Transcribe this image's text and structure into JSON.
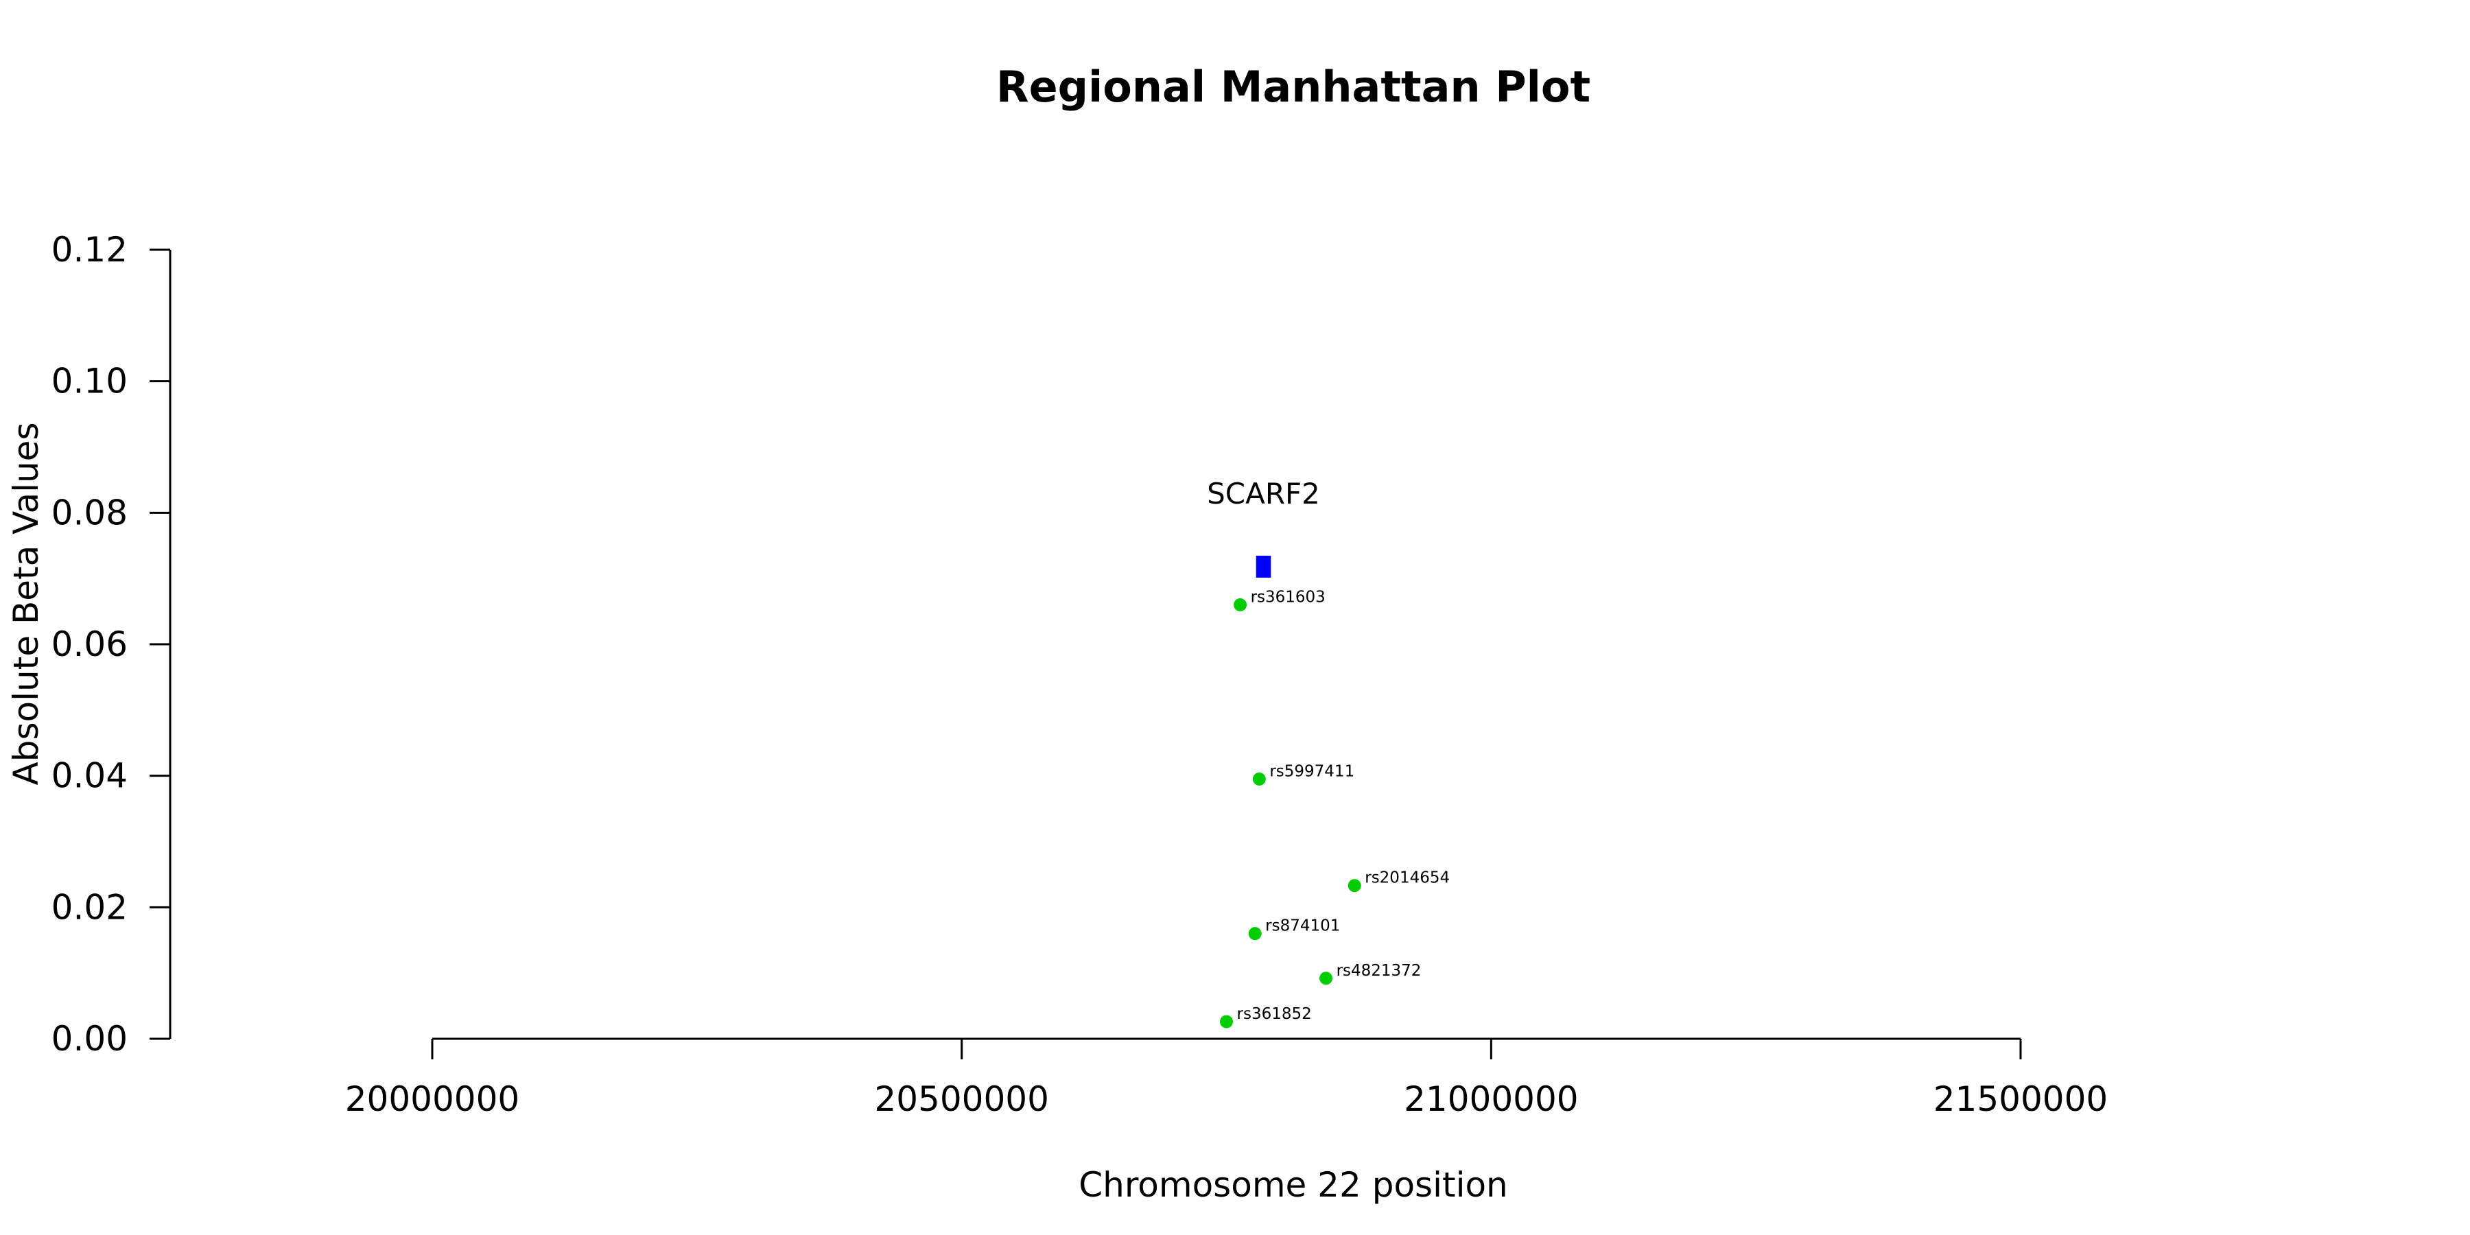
{
  "chart_data": {
    "type": "scatter",
    "title": "Regional Manhattan Plot",
    "xlabel": "Chromosome 22 position",
    "ylabel": "Absolute Beta Values",
    "xlim": [
      19750000,
      21900000
    ],
    "ylim": [
      0,
      0.12
    ],
    "xticks": [
      20000000,
      20500000,
      21000000,
      21500000
    ],
    "xtick_labels": [
      "20000000",
      "20500000",
      "21000000",
      "21500000"
    ],
    "yticks": [
      0,
      0.02,
      0.04,
      0.06,
      0.08,
      0.1,
      0.12
    ],
    "ytick_labels": [
      "0.00",
      "0.02",
      "0.04",
      "0.06",
      "0.08",
      "0.10",
      "0.12"
    ],
    "grid": false,
    "point_color": "#00cc00",
    "gene_color": "#0000ff",
    "points": [
      {
        "label": "rs361603",
        "x": 20763000,
        "y": 0.066
      },
      {
        "label": "rs5997411",
        "x": 20781000,
        "y": 0.0395
      },
      {
        "label": "rs2014654",
        "x": 20871000,
        "y": 0.0233
      },
      {
        "label": "rs874101",
        "x": 20777000,
        "y": 0.016
      },
      {
        "label": "rs4821372",
        "x": 20844000,
        "y": 0.0092
      },
      {
        "label": "rs361852",
        "x": 20750000,
        "y": 0.0026
      }
    ],
    "genes": [
      {
        "name": "SCARF2",
        "start": 20778000,
        "end": 20792000,
        "y": 0.0718
      }
    ]
  }
}
